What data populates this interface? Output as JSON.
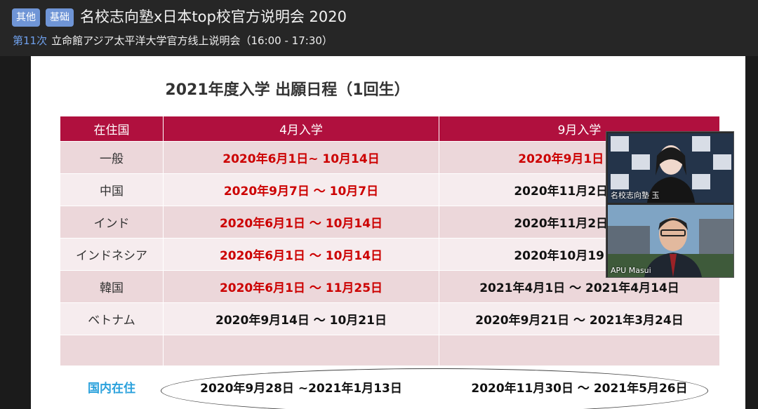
{
  "header": {
    "tags": [
      "其他",
      "基础"
    ],
    "title": "名校志向塾x日本top校官方说明会 2020",
    "episode": "第11次",
    "session": "立命館アジア太平洋大学官方线上说明会（16:00 - 17:30）"
  },
  "slide": {
    "title": "2021年度入学 出願日程（1回生）",
    "table": {
      "headers": [
        "在住国",
        "4月入学",
        "9月入学"
      ],
      "rows": [
        {
          "country": "一般",
          "april": "2020年6月1日~ 10月14日",
          "sept": "2020年9月1日 ～ 20"
        },
        {
          "country": "中国",
          "april": "2020年9月7日 ～ 10月7日",
          "sept": "2020年11月2日 ～ 20"
        },
        {
          "country": "インド",
          "april": "2020年6月1日 ～ 10月14日",
          "sept": "2020年11月2日 ～ 20"
        },
        {
          "country": "インドネシア",
          "april": "2020年6月1日 ～ 10月14日",
          "sept": "2020年10月19日 ～ 2"
        },
        {
          "country": "韓国",
          "april": "2020年6月1日 ～ 11月25日",
          "sept": "2021年4月1日 ～ 2021年4月14日"
        },
        {
          "country": "ベトナム",
          "april": "2020年9月14日 ～ 10月21日",
          "sept": "2020年9月21日 ～ 2021年3月24日"
        }
      ],
      "domestic": {
        "country": "国内在住",
        "april": "2020年9月28日 ~2021年1月13日",
        "sept": "2020年11月30日 ～ 2021年5月26日"
      }
    }
  },
  "video": {
    "participants": [
      {
        "name": "名校志向塾 玉"
      },
      {
        "name": "APU Masui"
      }
    ]
  },
  "colors": {
    "header_red": "#b0103e",
    "red_text": "#cc0000",
    "blue_text": "#2aa1dc",
    "tag_blue": "#6f95d6"
  }
}
